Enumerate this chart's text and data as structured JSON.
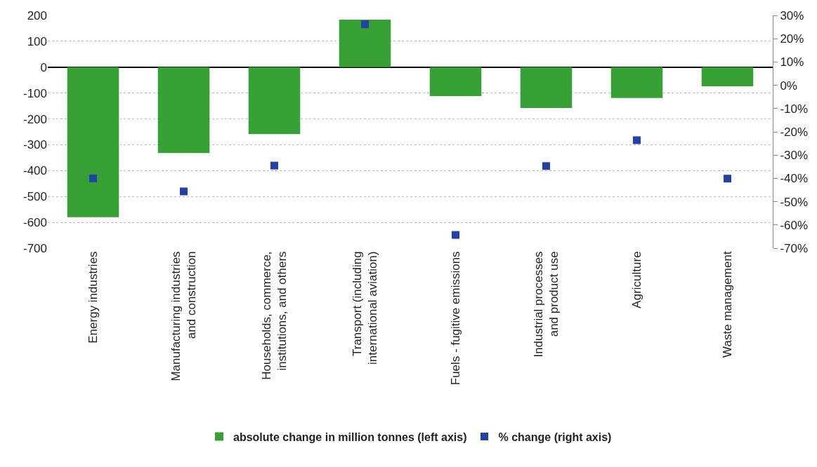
{
  "chart_data": {
    "type": "bar",
    "categories": [
      "Energy industries",
      "Manufacturing industries\nand construction",
      "Households, commerce,\ninstitutions, and others",
      "Transport (including\ninternational aviation)",
      "Fuels - fugitive emissions",
      "Industrial processes\nand product use",
      "Agriculture",
      "Waste management"
    ],
    "series": [
      {
        "name": "absolute change in million tonnes (left axis)",
        "color": "#36a035",
        "values": [
          -580,
          -332,
          -259,
          184,
          -112,
          -158,
          -119,
          -74
        ]
      },
      {
        "name": "% change (right axis)",
        "type": "scatter",
        "axis": "y2",
        "marker": "square",
        "color": "#2342a8",
        "values": [
          -40,
          -45.6,
          -34.5,
          26.2,
          -64.3,
          -34.7,
          -23.6,
          -40.1
        ]
      }
    ],
    "ylim": [
      -700,
      200
    ],
    "yticks": [
      200,
      100,
      0,
      -100,
      -200,
      -300,
      -400,
      -500,
      -600,
      -700
    ],
    "y2lim": [
      -70,
      30
    ],
    "y2ticks": [
      {
        "value": 30,
        "label": "30%"
      },
      {
        "value": 20,
        "label": "20%"
      },
      {
        "value": 10,
        "label": "10%"
      },
      {
        "value": 0,
        "label": "0%"
      },
      {
        "value": -10,
        "label": "-10%"
      },
      {
        "value": -20,
        "label": "-20%"
      },
      {
        "value": -30,
        "label": "-30%"
      },
      {
        "value": -40,
        "label": "-40%"
      },
      {
        "value": -50,
        "label": "-50%"
      },
      {
        "value": -60,
        "label": "-60%"
      },
      {
        "value": -70,
        "label": "-70%"
      }
    ],
    "grid": "y",
    "legend": "bottom"
  }
}
